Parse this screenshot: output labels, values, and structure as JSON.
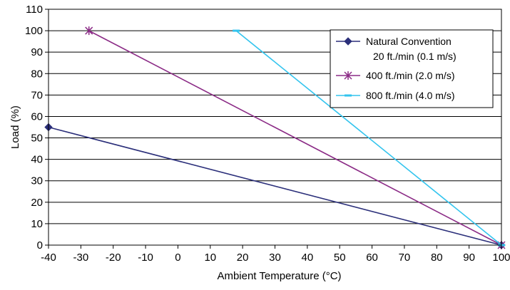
{
  "chart_data": {
    "type": "line",
    "title": "",
    "xlabel": "Ambient Temperature (°C)",
    "ylabel": "Load (%)",
    "xlim": [
      -40,
      100
    ],
    "ylim": [
      0,
      110
    ],
    "x_ticks": [
      "-40",
      "-30",
      "-20",
      "-10",
      "0",
      "10",
      "20",
      "30",
      "40",
      "50",
      "60",
      "70",
      "80",
      "90",
      "100"
    ],
    "y_ticks": [
      "0",
      "10",
      "20",
      "30",
      "40",
      "50",
      "60",
      "70",
      "80",
      "90",
      "100",
      "110"
    ],
    "grid": "horizontal",
    "legend_position": "top-right",
    "series": [
      {
        "name_line1": "Natural Convention",
        "name_line2": "20 ft./min (0.1 m/s)",
        "color": "#2b2f7a",
        "marker": "diamond",
        "x": [
          -40,
          100
        ],
        "y": [
          55,
          0
        ]
      },
      {
        "name_line1": "400 ft./min (2.0 m/s)",
        "color": "#8b2b86",
        "marker": "asterisk",
        "x": [
          -27.5,
          100
        ],
        "y": [
          100,
          0
        ]
      },
      {
        "name_line1": "800 ft./min (4.0 m/s)",
        "color": "#33c4ee",
        "marker": "dash",
        "x": [
          18,
          100
        ],
        "y": [
          100,
          0
        ]
      }
    ]
  }
}
